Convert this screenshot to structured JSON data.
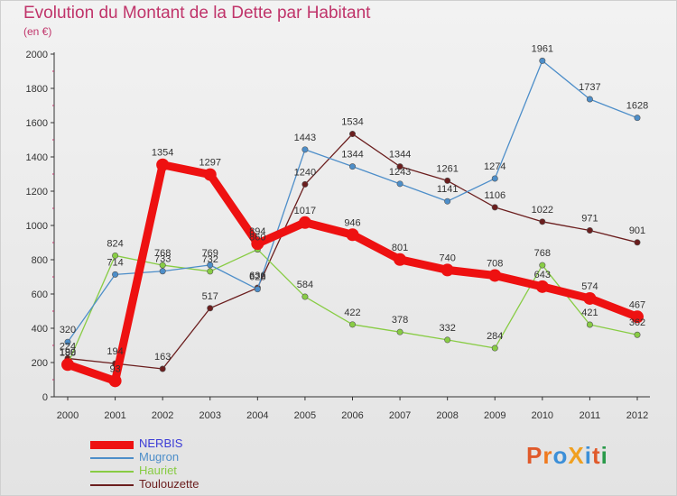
{
  "chart_data": {
    "type": "line",
    "title": "Evolution du Montant de la Dette par Habitant",
    "unit_label": "(en €)",
    "xlabel": "",
    "ylabel": "",
    "categories": [
      "2000",
      "2001",
      "2002",
      "2003",
      "2004",
      "2005",
      "2006",
      "2007",
      "2008",
      "2009",
      "2010",
      "2011",
      "2012"
    ],
    "ylim": [
      0,
      2000
    ],
    "yticks": [
      "0",
      "200",
      "400",
      "600",
      "800",
      "1000",
      "1200",
      "1400",
      "1600",
      "1800",
      "2000"
    ],
    "series": [
      {
        "name": "NERBIS",
        "color": "#ee1111",
        "values": [
          188,
          93,
          1354,
          1297,
          894,
          1017,
          946,
          801,
          740,
          708,
          643,
          574,
          467
        ],
        "labels": [
          "188",
          "93",
          "1354",
          "1297",
          "894",
          "1017",
          "946",
          "801",
          "740",
          "708",
          "643",
          "574",
          "467"
        ]
      },
      {
        "name": "Mugron",
        "color": "#4d8ec9",
        "values": [
          320,
          714,
          733,
          769,
          628,
          1443,
          1344,
          1243,
          1141,
          1274,
          1961,
          1737,
          1628
        ],
        "labels": [
          "320",
          "714",
          "733",
          "769",
          "628",
          "1443",
          "1344",
          "1243",
          "1141",
          "1274",
          "1961",
          "1737",
          "1628"
        ]
      },
      {
        "name": "Hauriet",
        "color": "#88cc44",
        "values": [
          190,
          824,
          768,
          732,
          860,
          584,
          422,
          378,
          332,
          284,
          768,
          421,
          362
        ],
        "labels": [
          "190",
          "824",
          "768",
          "732",
          "860",
          "584",
          "422",
          "378",
          "332",
          "284",
          "768",
          "421",
          "362"
        ]
      },
      {
        "name": "Toulouzette",
        "color": "#6b1e1e",
        "values": [
          224,
          194,
          163,
          517,
          636,
          1240,
          1534,
          1344,
          1261,
          1106,
          1022,
          971,
          901
        ],
        "labels": [
          "224",
          "194",
          "163",
          "517",
          "636",
          "1240",
          "1534",
          "1344",
          "1261",
          "1106",
          "1022",
          "971",
          "901"
        ]
      }
    ],
    "legend": [
      "NERBIS",
      "Mugron",
      "Hauriet",
      "Toulouzette"
    ],
    "grid": false
  },
  "brand": {
    "logo_text": "ProXiti",
    "logo_letters": [
      "P",
      "r",
      "o",
      "X",
      "i",
      "t",
      "i"
    ],
    "logo_colors": [
      "#e05a2b",
      "#f07a1e",
      "#3c8fd8",
      "#f0a020",
      "#3c8fd8",
      "#e05a2b",
      "#2a9a4a"
    ]
  },
  "colors": {
    "title": "#c0346a",
    "axis": "#333333",
    "legend_nerbis": "#3b3bd6"
  }
}
